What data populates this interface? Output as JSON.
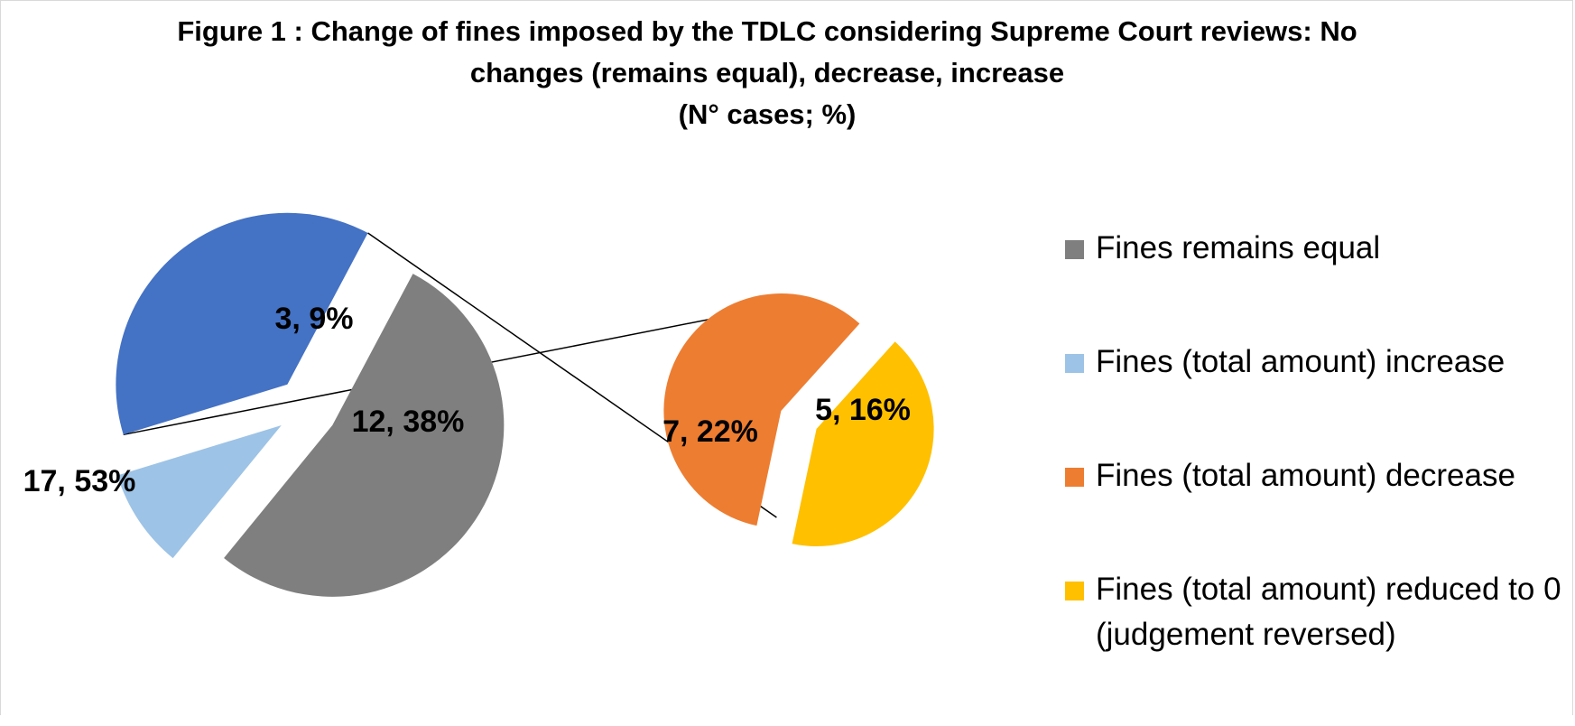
{
  "chart_data": {
    "type": "pie",
    "subtype": "pie-of-pie",
    "title_lines": [
      "Figure 1 : Change of fines imposed by the TDLC considering Supreme Court reviews: No",
      "changes (remains equal), decrease, increase",
      "(N° cases; %)"
    ],
    "slices": [
      {
        "key": "equal",
        "name": "Fines remains equal",
        "value": 17,
        "label": "17, 53%",
        "color": "#7f7f7f"
      },
      {
        "key": "increase",
        "name": "Fines (total amount) increase",
        "value": 3,
        "label": "3, 9%",
        "color": "#9dc3e6"
      },
      {
        "key": "other",
        "name": "",
        "value": 12,
        "label": "12, 38%",
        "color": "#4472c4"
      },
      {
        "key": "decrease",
        "name": "Fines (total amount) decrease",
        "value": 7,
        "label": "7, 22%",
        "color": "#ed7d31"
      },
      {
        "key": "reversed",
        "name": "Fines (total amount) reduced to 0 (judgement reversed)",
        "value": 5,
        "label": "5, 16%",
        "color": "#ffc000"
      }
    ],
    "primary_slices": [
      "equal",
      "increase",
      "other"
    ],
    "secondary_slices": [
      "decrease",
      "reversed"
    ],
    "legend_position": "right",
    "legend": [
      {
        "label": "Fines remains equal",
        "color": "#7f7f7f"
      },
      {
        "label": "Fines (total amount) increase",
        "color": "#9dc3e6"
      },
      {
        "label": "Fines (total amount) decrease",
        "color": "#ed7d31"
      },
      {
        "label": "Fines (total amount) reduced to 0 (judgement reversed)",
        "color": "#ffc000"
      }
    ]
  }
}
